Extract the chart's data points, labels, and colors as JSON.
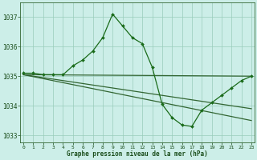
{
  "series1": {
    "x": [
      0,
      1,
      2,
      3,
      4,
      5,
      6,
      7,
      8,
      9,
      10,
      11,
      12,
      13,
      14,
      15,
      16,
      17,
      18,
      19,
      20,
      21,
      22,
      23
    ],
    "y": [
      1035.1,
      1035.1,
      1035.05,
      1035.05,
      1035.05,
      1035.35,
      1035.55,
      1035.85,
      1036.3,
      1037.1,
      1036.7,
      1036.3,
      1036.1,
      1035.3,
      1034.05,
      1033.6,
      1033.35,
      1033.3,
      1033.85,
      1034.1,
      1034.35,
      1034.6,
      1034.85,
      1035.0
    ],
    "color": "#1a6b1a",
    "linewidth": 0.9,
    "marker": "D",
    "markersize": 2.0
  },
  "series2": {
    "x": [
      0,
      23
    ],
    "y": [
      1035.05,
      1035.0
    ],
    "color": "#1a6b1a",
    "linewidth": 0.9
  },
  "series3": {
    "x": [
      0,
      23
    ],
    "y": [
      1035.05,
      1033.5
    ],
    "color": "#1a6b1a",
    "linewidth": 0.9
  },
  "series4": {
    "x": [
      0,
      23
    ],
    "y": [
      1035.05,
      1033.9
    ],
    "color": "#1a6b1a",
    "linewidth": 0.9
  },
  "xlabel": "Graphe pression niveau de la mer (hPa)",
  "xlim": [
    -0.3,
    23.3
  ],
  "ylim": [
    1032.75,
    1037.5
  ],
  "yticks": [
    1033,
    1034,
    1035,
    1036,
    1037
  ],
  "xticks": [
    0,
    1,
    2,
    3,
    4,
    5,
    6,
    7,
    8,
    9,
    10,
    11,
    12,
    13,
    14,
    15,
    16,
    17,
    18,
    19,
    20,
    21,
    22,
    23
  ],
  "bg_color": "#cceee8",
  "grid_color": "#99ccbb",
  "axis_color": "#336633",
  "text_color": "#1a4d1a",
  "tick_label_color": "#1a4d1a"
}
